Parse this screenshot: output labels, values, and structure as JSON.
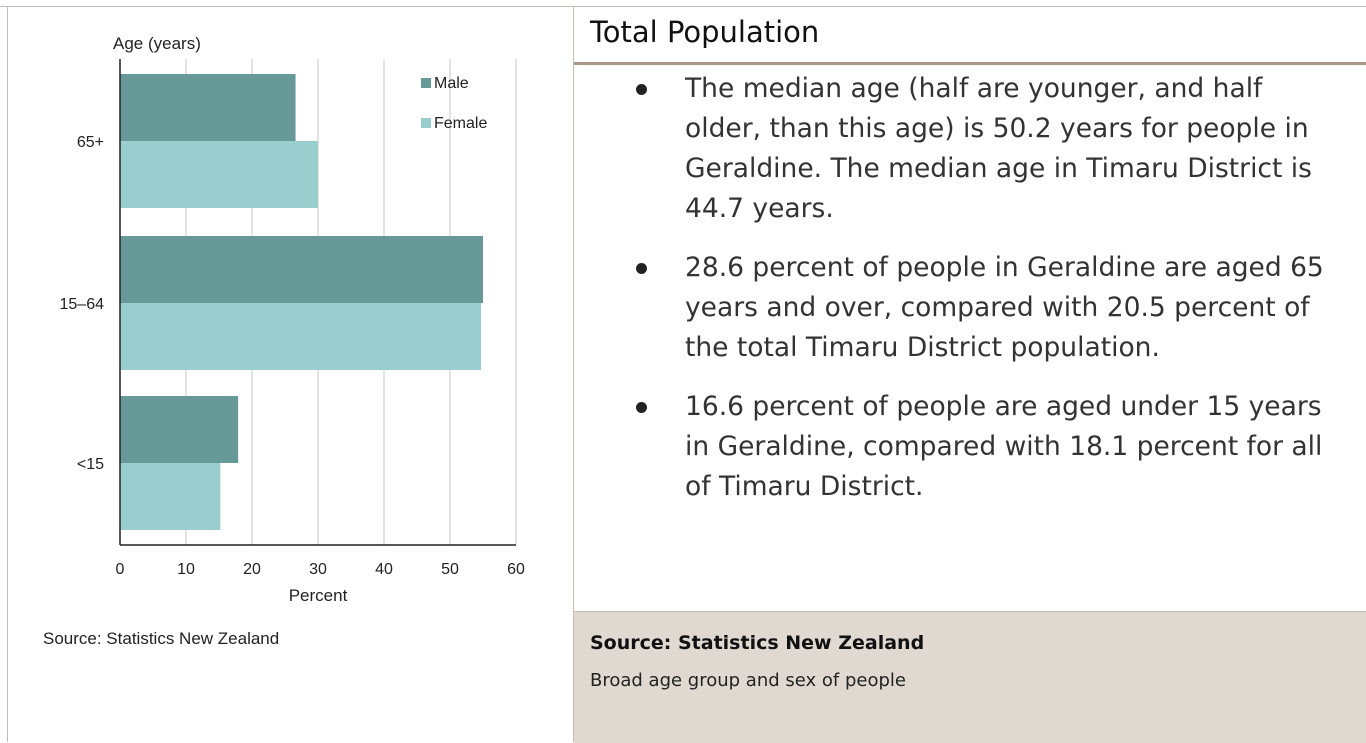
{
  "chart_data": {
    "type": "bar",
    "orientation": "horizontal",
    "ylabel": "Age (years)",
    "xlabel": "Percent",
    "categories": [
      "65+",
      "15–64",
      "<15"
    ],
    "series": [
      {
        "name": "Male",
        "values": [
          26.6,
          55.0,
          17.9
        ],
        "color": "#679998"
      },
      {
        "name": "Female",
        "values": [
          30.0,
          54.7,
          15.2
        ],
        "color": "#9acdcd"
      }
    ],
    "xlim": [
      0,
      60
    ],
    "xticks": [
      0,
      10,
      20,
      30,
      40,
      50,
      60
    ],
    "grid": true,
    "legend": "top-right"
  },
  "chart_source": "Source: Statistics New Zealand",
  "panel": {
    "title": "Total Population",
    "bullets": [
      "The median age (half are younger, and half older, than this age) is 50.2 years for people in Geraldine. The median age in Timaru District is 44.7 years.",
      "28.6 percent of people in Geraldine are aged 65 years and over, compared with 20.5 percent of the total Timaru District population.",
      "16.6 percent of people are aged under 15 years in Geraldine, compared with 18.1 percent for all of Timaru District."
    ],
    "footer_source": "Source: Statistics New Zealand",
    "footer_caption": "Broad age group and sex of people"
  },
  "colors": {
    "male": "#679998",
    "female": "#9acdcd",
    "footer_bg": "#e0d9d2",
    "rule": "#a89888"
  }
}
